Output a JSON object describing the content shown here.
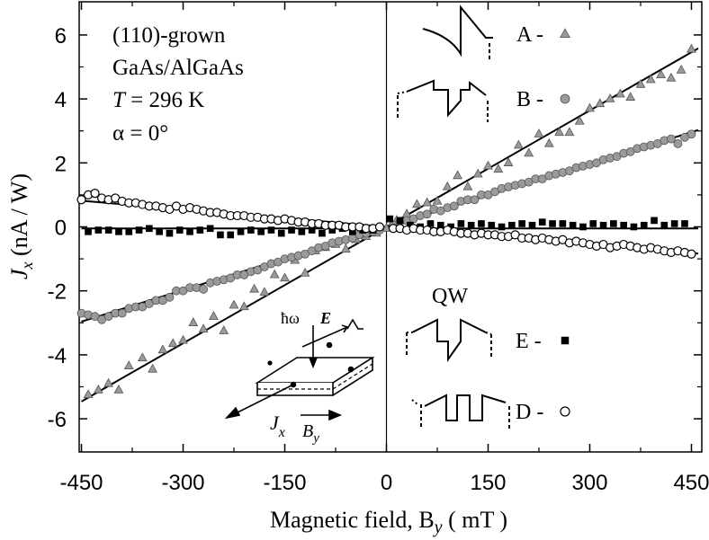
{
  "chart_data": {
    "type": "scatter",
    "xlabel": "Magnetic field, B",
    "xlabel_sub": "y",
    "xlabel_unit": "( mT )",
    "ylabel": "J",
    "ylabel_sub": "x",
    "ylabel_unit": "(nA / W)",
    "xlim": [
      -450,
      460
    ],
    "ylim": [
      -7,
      7
    ],
    "xticks": [
      -450,
      -300,
      -150,
      0,
      150,
      300,
      450
    ],
    "xtick_labels": [
      "-450",
      "-300",
      "-150",
      "0",
      "150",
      "300",
      "450"
    ],
    "yticks": [
      -6,
      -4,
      -2,
      0,
      2,
      4,
      6
    ],
    "ytick_labels": [
      "-6",
      "-4",
      "-2",
      "0",
      "2",
      "4",
      "6"
    ],
    "annotation": {
      "line1": "(110)-grown",
      "line2": "GaAs/AlGaAs",
      "line3_var": "T",
      "line3_val": " = 296 K",
      "line4": "α = 0°"
    },
    "series": [
      {
        "name": "A",
        "marker": "triangle",
        "color": "#9a9a9a",
        "slope": 0.01213,
        "intercept": 0.0,
        "points": [
          [
            -440,
            -5.25
          ],
          [
            -425,
            -5.1
          ],
          [
            -410,
            -4.9
          ],
          [
            -395,
            -5.1
          ],
          [
            -380,
            -4.35
          ],
          [
            -360,
            -4.1
          ],
          [
            -345,
            -4.45
          ],
          [
            -330,
            -3.85
          ],
          [
            -315,
            -3.65
          ],
          [
            -300,
            -3.55
          ],
          [
            -285,
            -3.0
          ],
          [
            -270,
            -3.2
          ],
          [
            -255,
            -2.8
          ],
          [
            -240,
            -3.25
          ],
          [
            -225,
            -2.45
          ],
          [
            -210,
            -2.5
          ],
          [
            -195,
            -1.95
          ],
          [
            -180,
            -2.05
          ],
          [
            -165,
            -1.5
          ],
          [
            -150,
            -1.6
          ],
          [
            -135,
            -1.05
          ],
          [
            -120,
            -1.45
          ],
          [
            -105,
            -0.75
          ],
          [
            -90,
            -0.65
          ],
          [
            -75,
            -0.55
          ],
          [
            -60,
            -0.7
          ],
          [
            -45,
            -0.4
          ],
          [
            -30,
            -0.3
          ],
          [
            -15,
            -0.2
          ],
          [
            0,
            -0.05
          ],
          [
            15,
            0.2
          ],
          [
            30,
            0.4
          ],
          [
            45,
            0.7
          ],
          [
            60,
            0.75
          ],
          [
            75,
            0.8
          ],
          [
            90,
            1.25
          ],
          [
            105,
            1.6
          ],
          [
            120,
            1.25
          ],
          [
            135,
            1.65
          ],
          [
            150,
            1.9
          ],
          [
            165,
            1.8
          ],
          [
            180,
            2.0
          ],
          [
            195,
            2.55
          ],
          [
            210,
            2.3
          ],
          [
            225,
            2.9
          ],
          [
            240,
            2.6
          ],
          [
            255,
            2.95
          ],
          [
            270,
            2.95
          ],
          [
            285,
            3.3
          ],
          [
            300,
            3.7
          ],
          [
            315,
            3.85
          ],
          [
            330,
            4.0
          ],
          [
            345,
            4.15
          ],
          [
            360,
            4.05
          ],
          [
            375,
            4.45
          ],
          [
            390,
            4.6
          ],
          [
            405,
            4.75
          ],
          [
            420,
            4.65
          ],
          [
            435,
            4.9
          ],
          [
            450,
            5.55
          ]
        ]
      },
      {
        "name": "B",
        "marker": "circle",
        "color": "#9a9a9a",
        "slope": 0.00658,
        "intercept": 0.0,
        "points": [
          [
            -450,
            -2.7
          ],
          [
            -440,
            -2.75
          ],
          [
            -430,
            -2.8
          ],
          [
            -420,
            -2.9
          ],
          [
            -410,
            -2.8
          ],
          [
            -400,
            -2.7
          ],
          [
            -390,
            -2.7
          ],
          [
            -380,
            -2.55
          ],
          [
            -370,
            -2.5
          ],
          [
            -360,
            -2.5
          ],
          [
            -350,
            -2.4
          ],
          [
            -340,
            -2.3
          ],
          [
            -330,
            -2.3
          ],
          [
            -320,
            -2.2
          ],
          [
            -310,
            -2.0
          ],
          [
            -300,
            -2.0
          ],
          [
            -290,
            -1.9
          ],
          [
            -280,
            -1.9
          ],
          [
            -270,
            -1.95
          ],
          [
            -260,
            -1.75
          ],
          [
            -250,
            -1.7
          ],
          [
            -240,
            -1.65
          ],
          [
            -230,
            -1.6
          ],
          [
            -220,
            -1.5
          ],
          [
            -210,
            -1.5
          ],
          [
            -200,
            -1.4
          ],
          [
            -190,
            -1.35
          ],
          [
            -180,
            -1.25
          ],
          [
            -170,
            -1.15
          ],
          [
            -160,
            -1.1
          ],
          [
            -150,
            -1.0
          ],
          [
            -140,
            -0.95
          ],
          [
            -130,
            -0.9
          ],
          [
            -120,
            -0.85
          ],
          [
            -110,
            -0.75
          ],
          [
            -100,
            -0.65
          ],
          [
            -90,
            -0.6
          ],
          [
            -80,
            -0.5
          ],
          [
            -70,
            -0.45
          ],
          [
            -60,
            -0.4
          ],
          [
            -50,
            -0.35
          ],
          [
            -40,
            -0.25
          ],
          [
            -30,
            -0.2
          ],
          [
            -20,
            -0.15
          ],
          [
            -10,
            -0.1
          ],
          [
            10,
            0.05
          ],
          [
            20,
            0.15
          ],
          [
            30,
            0.2
          ],
          [
            40,
            0.25
          ],
          [
            50,
            0.35
          ],
          [
            60,
            0.4
          ],
          [
            70,
            0.55
          ],
          [
            80,
            0.5
          ],
          [
            90,
            0.6
          ],
          [
            100,
            0.65
          ],
          [
            110,
            0.8
          ],
          [
            120,
            0.85
          ],
          [
            130,
            0.85
          ],
          [
            140,
            1.0
          ],
          [
            150,
            1.0
          ],
          [
            160,
            1.1
          ],
          [
            170,
            1.2
          ],
          [
            180,
            1.25
          ],
          [
            190,
            1.3
          ],
          [
            200,
            1.35
          ],
          [
            210,
            1.4
          ],
          [
            220,
            1.5
          ],
          [
            230,
            1.5
          ],
          [
            240,
            1.6
          ],
          [
            250,
            1.65
          ],
          [
            260,
            1.7
          ],
          [
            270,
            1.75
          ],
          [
            280,
            1.85
          ],
          [
            290,
            1.9
          ],
          [
            300,
            1.95
          ],
          [
            310,
            2.0
          ],
          [
            320,
            2.1
          ],
          [
            330,
            2.15
          ],
          [
            340,
            2.2
          ],
          [
            350,
            2.3
          ],
          [
            360,
            2.35
          ],
          [
            370,
            2.45
          ],
          [
            380,
            2.5
          ],
          [
            390,
            2.55
          ],
          [
            400,
            2.6
          ],
          [
            410,
            2.7
          ],
          [
            420,
            2.75
          ],
          [
            430,
            2.6
          ],
          [
            440,
            2.8
          ],
          [
            450,
            2.9
          ]
        ]
      },
      {
        "name": "E",
        "marker": "square",
        "color": "#000000",
        "slope": 0.0,
        "intercept": -0.05,
        "points": [
          [
            -440,
            -0.15
          ],
          [
            -425,
            -0.1
          ],
          [
            -410,
            -0.1
          ],
          [
            -395,
            -0.15
          ],
          [
            -380,
            -0.15
          ],
          [
            -365,
            -0.1
          ],
          [
            -350,
            -0.05
          ],
          [
            -335,
            -0.15
          ],
          [
            -320,
            -0.2
          ],
          [
            -305,
            -0.1
          ],
          [
            -290,
            -0.15
          ],
          [
            -275,
            -0.1
          ],
          [
            -260,
            -0.05
          ],
          [
            -245,
            -0.25
          ],
          [
            -230,
            -0.25
          ],
          [
            -215,
            -0.15
          ],
          [
            -200,
            -0.1
          ],
          [
            -185,
            -0.15
          ],
          [
            -170,
            -0.1
          ],
          [
            -155,
            -0.2
          ],
          [
            -140,
            -0.1
          ],
          [
            -125,
            -0.15
          ],
          [
            -110,
            -0.1
          ],
          [
            -95,
            -0.2
          ],
          [
            -80,
            -0.1
          ],
          [
            -65,
            -0.05
          ],
          [
            -50,
            -0.15
          ],
          [
            -35,
            -0.1
          ],
          [
            -20,
            -0.1
          ],
          [
            5,
            0.25
          ],
          [
            20,
            0.2
          ],
          [
            35,
            0.05
          ],
          [
            50,
            0.0
          ],
          [
            65,
            0.1
          ],
          [
            80,
            0.05
          ],
          [
            95,
            0.0
          ],
          [
            110,
            0.1
          ],
          [
            125,
            0.05
          ],
          [
            140,
            0.1
          ],
          [
            155,
            0.05
          ],
          [
            170,
            0.0
          ],
          [
            185,
            0.05
          ],
          [
            200,
            0.1
          ],
          [
            215,
            0.05
          ],
          [
            230,
            0.15
          ],
          [
            245,
            0.1
          ],
          [
            260,
            0.1
          ],
          [
            275,
            0.05
          ],
          [
            290,
            0.0
          ],
          [
            305,
            0.1
          ],
          [
            320,
            0.05
          ],
          [
            335,
            0.1
          ],
          [
            350,
            0.05
          ],
          [
            365,
            0.0
          ],
          [
            380,
            0.05
          ],
          [
            395,
            0.2
          ],
          [
            410,
            0.05
          ],
          [
            425,
            0.1
          ],
          [
            440,
            0.1
          ]
        ]
      },
      {
        "name": "D",
        "marker": "circle-open",
        "color": "#ffffff",
        "slope": -0.00182,
        "intercept": 0.0,
        "points": [
          [
            -450,
            0.85
          ],
          [
            -440,
            1.0
          ],
          [
            -430,
            1.05
          ],
          [
            -420,
            0.9
          ],
          [
            -410,
            0.85
          ],
          [
            -400,
            0.9
          ],
          [
            -390,
            0.8
          ],
          [
            -380,
            0.75
          ],
          [
            -370,
            0.75
          ],
          [
            -360,
            0.7
          ],
          [
            -350,
            0.65
          ],
          [
            -340,
            0.65
          ],
          [
            -330,
            0.6
          ],
          [
            -320,
            0.55
          ],
          [
            -310,
            0.65
          ],
          [
            -300,
            0.55
          ],
          [
            -290,
            0.6
          ],
          [
            -280,
            0.55
          ],
          [
            -270,
            0.5
          ],
          [
            -260,
            0.45
          ],
          [
            -250,
            0.45
          ],
          [
            -240,
            0.4
          ],
          [
            -230,
            0.35
          ],
          [
            -220,
            0.35
          ],
          [
            -210,
            0.35
          ],
          [
            -200,
            0.3
          ],
          [
            -190,
            0.3
          ],
          [
            -180,
            0.25
          ],
          [
            -170,
            0.25
          ],
          [
            -160,
            0.2
          ],
          [
            -150,
            0.25
          ],
          [
            -140,
            0.2
          ],
          [
            -130,
            0.15
          ],
          [
            -120,
            0.15
          ],
          [
            -110,
            0.1
          ],
          [
            -100,
            0.1
          ],
          [
            -90,
            0.05
          ],
          [
            -80,
            0.05
          ],
          [
            -70,
            0.05
          ],
          [
            -60,
            0.0
          ],
          [
            -50,
            0.0
          ],
          [
            -40,
            0.0
          ],
          [
            -30,
            -0.05
          ],
          [
            -20,
            -0.05
          ],
          [
            -10,
            0.0
          ],
          [
            10,
            -0.05
          ],
          [
            20,
            -0.05
          ],
          [
            30,
            -0.1
          ],
          [
            40,
            -0.05
          ],
          [
            50,
            -0.1
          ],
          [
            60,
            -0.1
          ],
          [
            70,
            -0.15
          ],
          [
            80,
            -0.15
          ],
          [
            90,
            -0.1
          ],
          [
            100,
            -0.15
          ],
          [
            110,
            -0.2
          ],
          [
            120,
            -0.2
          ],
          [
            130,
            -0.25
          ],
          [
            140,
            -0.2
          ],
          [
            150,
            -0.25
          ],
          [
            160,
            -0.25
          ],
          [
            170,
            -0.3
          ],
          [
            180,
            -0.3
          ],
          [
            190,
            -0.25
          ],
          [
            200,
            -0.35
          ],
          [
            210,
            -0.35
          ],
          [
            220,
            -0.4
          ],
          [
            230,
            -0.35
          ],
          [
            240,
            -0.4
          ],
          [
            250,
            -0.45
          ],
          [
            260,
            -0.4
          ],
          [
            270,
            -0.5
          ],
          [
            280,
            -0.45
          ],
          [
            290,
            -0.5
          ],
          [
            300,
            -0.55
          ],
          [
            310,
            -0.6
          ],
          [
            320,
            -0.55
          ],
          [
            330,
            -0.65
          ],
          [
            340,
            -0.6
          ],
          [
            350,
            -0.55
          ],
          [
            360,
            -0.6
          ],
          [
            370,
            -0.65
          ],
          [
            380,
            -0.7
          ],
          [
            390,
            -0.65
          ],
          [
            400,
            -0.7
          ],
          [
            410,
            -0.75
          ],
          [
            420,
            -0.8
          ],
          [
            430,
            -0.75
          ],
          [
            440,
            -0.8
          ],
          [
            450,
            -0.85
          ]
        ]
      }
    ],
    "legend": [
      {
        "label": "A -",
        "marker": "triangle"
      },
      {
        "label": "B -",
        "marker": "circle"
      },
      {
        "label": "E -",
        "marker": "square"
      },
      {
        "label": "D -",
        "marker": "circle-open"
      }
    ],
    "qw_label": "QW",
    "inset": {
      "hw_label": "ħω",
      "e_label": "E",
      "jx_label": "J",
      "jx_sub": "x",
      "by_label": "B",
      "by_sub": "y"
    }
  }
}
